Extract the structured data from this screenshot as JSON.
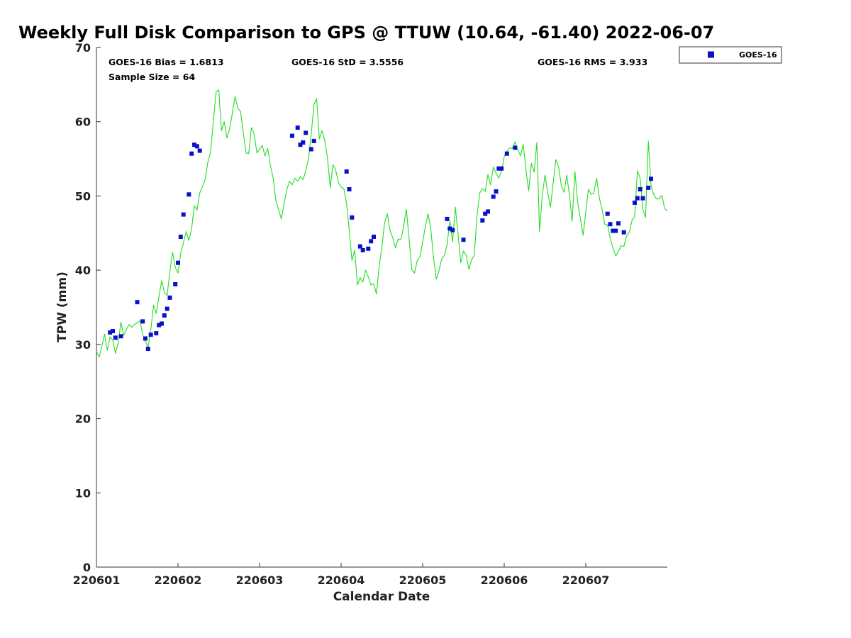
{
  "chart_data": {
    "type": "scatter",
    "title": "Weekly Full Disk Comparison to GPS @ TTUW (10.64, -61.40) 2022-06-07",
    "xlabel": "Calendar Date",
    "ylabel": "TPW (mm)",
    "xlim": [
      0,
      210
    ],
    "ylim": [
      0,
      70
    ],
    "x_ticks": [
      {
        "value": 0,
        "label": "220601"
      },
      {
        "value": 30,
        "label": "220602"
      },
      {
        "value": 60,
        "label": "220603"
      },
      {
        "value": 90,
        "label": "220604"
      },
      {
        "value": 120,
        "label": "220605"
      },
      {
        "value": 150,
        "label": "220606"
      },
      {
        "value": 180,
        "label": "220607"
      }
    ],
    "y_ticks": [
      0,
      10,
      20,
      30,
      40,
      50,
      60,
      70
    ],
    "stats": {
      "bias": "GOES-16 Bias = 1.6813",
      "std": "GOES-16 StD = 3.5556",
      "rms": "GOES-16 RMS = 3.933",
      "sample_size": "Sample Size = 64"
    },
    "legend": {
      "placement": "top-right-outside",
      "entries": [
        {
          "label": "GOES-16",
          "marker": "square",
          "color": "#0a12c8"
        }
      ]
    },
    "series": [
      {
        "name": "GOES-16",
        "style": "markers",
        "color": "#0a12c8",
        "points": [
          [
            5,
            31.6
          ],
          [
            6,
            31.8
          ],
          [
            7,
            30.9
          ],
          [
            9,
            31.1
          ],
          [
            15,
            35.7
          ],
          [
            17,
            33.1
          ],
          [
            18,
            30.8
          ],
          [
            19,
            29.4
          ],
          [
            20,
            31.3
          ],
          [
            22,
            31.5
          ],
          [
            23,
            32.6
          ],
          [
            24,
            32.8
          ],
          [
            25,
            33.9
          ],
          [
            26,
            34.8
          ],
          [
            27,
            36.3
          ],
          [
            29,
            38.1
          ],
          [
            30,
            41.0
          ],
          [
            31,
            44.5
          ],
          [
            32,
            47.5
          ],
          [
            34,
            50.2
          ],
          [
            35,
            55.7
          ],
          [
            36,
            56.9
          ],
          [
            37,
            56.7
          ],
          [
            38,
            56.1
          ],
          [
            72,
            58.1
          ],
          [
            74,
            59.2
          ],
          [
            75,
            56.9
          ],
          [
            76,
            57.2
          ],
          [
            77,
            58.5
          ],
          [
            79,
            56.3
          ],
          [
            80,
            57.4
          ],
          [
            92,
            53.3
          ],
          [
            93,
            50.9
          ],
          [
            94,
            47.1
          ],
          [
            97,
            43.2
          ],
          [
            98,
            42.7
          ],
          [
            100,
            42.9
          ],
          [
            101,
            43.9
          ],
          [
            102,
            44.5
          ],
          [
            129,
            46.9
          ],
          [
            130,
            45.6
          ],
          [
            131,
            45.4
          ],
          [
            135,
            44.1
          ],
          [
            142,
            46.7
          ],
          [
            143,
            47.6
          ],
          [
            144,
            47.9
          ],
          [
            146,
            49.9
          ],
          [
            147,
            50.6
          ],
          [
            148,
            53.7
          ],
          [
            149,
            53.7
          ],
          [
            151,
            55.7
          ],
          [
            154,
            56.5
          ],
          [
            188,
            47.6
          ],
          [
            189,
            46.2
          ],
          [
            190,
            45.3
          ],
          [
            191,
            45.3
          ],
          [
            192,
            46.3
          ],
          [
            194,
            45.1
          ],
          [
            198,
            49.1
          ],
          [
            199,
            49.7
          ],
          [
            200,
            50.9
          ],
          [
            201,
            49.7
          ],
          [
            203,
            51.1
          ],
          [
            204,
            52.3
          ]
        ]
      },
      {
        "name": "GPS",
        "style": "line",
        "color": "#22dd22",
        "points": [
          [
            0,
            29.0
          ],
          [
            1,
            28.3
          ],
          [
            2,
            29.8
          ],
          [
            3,
            31.4
          ],
          [
            4,
            29.2
          ],
          [
            5,
            31.0
          ],
          [
            6,
            30.6
          ],
          [
            7,
            28.8
          ],
          [
            8,
            30.2
          ],
          [
            9,
            33.0
          ],
          [
            10,
            31.2
          ],
          [
            11,
            32.0
          ],
          [
            12,
            32.7
          ],
          [
            13,
            32.3
          ],
          [
            14,
            32.7
          ],
          [
            15,
            32.9
          ],
          [
            16,
            33.2
          ],
          [
            17,
            31.3
          ],
          [
            18,
            30.4
          ],
          [
            19,
            29.6
          ],
          [
            20,
            32.0
          ],
          [
            21,
            35.3
          ],
          [
            22,
            34.2
          ],
          [
            23,
            36.5
          ],
          [
            24,
            38.6
          ],
          [
            25,
            37.0
          ],
          [
            26,
            36.6
          ],
          [
            27,
            39.8
          ],
          [
            28,
            42.4
          ],
          [
            29,
            40.4
          ],
          [
            30,
            39.6
          ],
          [
            31,
            42.3
          ],
          [
            32,
            43.7
          ],
          [
            33,
            45.2
          ],
          [
            34,
            44.0
          ],
          [
            35,
            45.6
          ],
          [
            36,
            48.7
          ],
          [
            37,
            48.1
          ],
          [
            38,
            50.4
          ],
          [
            39,
            51.3
          ],
          [
            40,
            52.2
          ],
          [
            41,
            54.6
          ],
          [
            42,
            55.9
          ],
          [
            43,
            60.0
          ],
          [
            44,
            64.0
          ],
          [
            45,
            64.3
          ],
          [
            46,
            58.8
          ],
          [
            47,
            60.0
          ],
          [
            48,
            57.8
          ],
          [
            49,
            59.0
          ],
          [
            50,
            61.2
          ],
          [
            51,
            63.4
          ],
          [
            52,
            61.8
          ],
          [
            53,
            61.4
          ],
          [
            54,
            58.6
          ],
          [
            55,
            55.8
          ],
          [
            56,
            55.7
          ],
          [
            57,
            59.2
          ],
          [
            58,
            58.4
          ],
          [
            59,
            55.8
          ],
          [
            60,
            56.3
          ],
          [
            61,
            56.8
          ],
          [
            62,
            55.4
          ],
          [
            63,
            56.4
          ],
          [
            64,
            54.1
          ],
          [
            65,
            52.4
          ],
          [
            66,
            49.4
          ],
          [
            67,
            48.2
          ],
          [
            68,
            46.9
          ],
          [
            69,
            48.9
          ],
          [
            70,
            50.8
          ],
          [
            71,
            52.0
          ],
          [
            72,
            51.5
          ],
          [
            73,
            52.4
          ],
          [
            74,
            52.0
          ],
          [
            75,
            52.6
          ],
          [
            76,
            52.2
          ],
          [
            77,
            53.4
          ],
          [
            78,
            55.0
          ],
          [
            79,
            58.3
          ],
          [
            80,
            62.3
          ],
          [
            81,
            63.1
          ],
          [
            82,
            57.7
          ],
          [
            83,
            58.8
          ],
          [
            84,
            57.4
          ],
          [
            85,
            55.1
          ],
          [
            86,
            51.1
          ],
          [
            87,
            54.2
          ],
          [
            88,
            53.5
          ],
          [
            89,
            51.8
          ],
          [
            90,
            51.2
          ],
          [
            91,
            51.0
          ],
          [
            92,
            49.0
          ],
          [
            93,
            45.3
          ],
          [
            94,
            41.3
          ],
          [
            95,
            42.7
          ],
          [
            96,
            38.0
          ],
          [
            97,
            39.0
          ],
          [
            98,
            38.4
          ],
          [
            99,
            40.0
          ],
          [
            100,
            39.1
          ],
          [
            101,
            38.0
          ],
          [
            102,
            38.2
          ],
          [
            103,
            36.8
          ],
          [
            104,
            40.5
          ],
          [
            105,
            43.1
          ],
          [
            106,
            46.4
          ],
          [
            107,
            47.6
          ],
          [
            108,
            45.3
          ],
          [
            109,
            44.4
          ],
          [
            110,
            43.0
          ],
          [
            111,
            44.2
          ],
          [
            112,
            44.1
          ],
          [
            113,
            45.9
          ],
          [
            114,
            48.2
          ],
          [
            115,
            44.3
          ],
          [
            116,
            40.1
          ],
          [
            117,
            39.6
          ],
          [
            118,
            41.3
          ],
          [
            119,
            41.8
          ],
          [
            120,
            43.8
          ],
          [
            121,
            45.9
          ],
          [
            122,
            47.6
          ],
          [
            123,
            45.5
          ],
          [
            124,
            41.7
          ],
          [
            125,
            38.8
          ],
          [
            126,
            39.9
          ],
          [
            127,
            41.5
          ],
          [
            128,
            42.0
          ],
          [
            129,
            43.5
          ],
          [
            130,
            46.6
          ],
          [
            131,
            43.8
          ],
          [
            132,
            48.5
          ],
          [
            133,
            45.0
          ],
          [
            134,
            41.0
          ],
          [
            135,
            42.6
          ],
          [
            136,
            42.0
          ],
          [
            137,
            40.1
          ],
          [
            138,
            41.4
          ],
          [
            139,
            42.0
          ],
          [
            140,
            47.4
          ],
          [
            141,
            50.4
          ],
          [
            142,
            51.0
          ],
          [
            143,
            50.6
          ],
          [
            144,
            52.9
          ],
          [
            145,
            51.5
          ],
          [
            146,
            53.9
          ],
          [
            147,
            53.1
          ],
          [
            148,
            52.4
          ],
          [
            149,
            53.3
          ],
          [
            150,
            55.3
          ],
          [
            151,
            56.0
          ],
          [
            152,
            56.5
          ],
          [
            153,
            56.4
          ],
          [
            154,
            57.3
          ],
          [
            155,
            56.2
          ],
          [
            156,
            55.4
          ],
          [
            157,
            57.0
          ],
          [
            158,
            53.5
          ],
          [
            159,
            50.7
          ],
          [
            160,
            54.4
          ],
          [
            161,
            53.2
          ],
          [
            162,
            57.2
          ],
          [
            163,
            45.2
          ],
          [
            164,
            50.1
          ],
          [
            165,
            52.8
          ],
          [
            166,
            50.5
          ],
          [
            167,
            48.5
          ],
          [
            168,
            51.7
          ],
          [
            169,
            54.9
          ],
          [
            170,
            53.9
          ],
          [
            171,
            51.4
          ],
          [
            172,
            50.5
          ],
          [
            173,
            52.8
          ],
          [
            174,
            50.1
          ],
          [
            175,
            46.6
          ],
          [
            176,
            53.3
          ],
          [
            177,
            49.2
          ],
          [
            178,
            47.0
          ],
          [
            179,
            44.7
          ],
          [
            180,
            47.8
          ],
          [
            181,
            50.9
          ],
          [
            182,
            50.2
          ],
          [
            183,
            50.4
          ],
          [
            184,
            52.4
          ],
          [
            185,
            49.7
          ],
          [
            186,
            48.2
          ],
          [
            187,
            46.2
          ],
          [
            188,
            46.1
          ],
          [
            189,
            44.3
          ],
          [
            190,
            43.0
          ],
          [
            191,
            41.9
          ],
          [
            192,
            42.5
          ],
          [
            193,
            43.3
          ],
          [
            194,
            43.2
          ],
          [
            195,
            44.6
          ],
          [
            196,
            45.1
          ],
          [
            197,
            46.7
          ],
          [
            198,
            47.2
          ],
          [
            199,
            53.4
          ],
          [
            200,
            52.4
          ],
          [
            201,
            48.2
          ],
          [
            202,
            47.1
          ],
          [
            203,
            57.4
          ],
          [
            204,
            51.4
          ],
          [
            205,
            50.2
          ],
          [
            206,
            49.6
          ],
          [
            207,
            49.6
          ],
          [
            208,
            50.1
          ],
          [
            209,
            48.3
          ],
          [
            210,
            48.0
          ]
        ]
      }
    ]
  }
}
